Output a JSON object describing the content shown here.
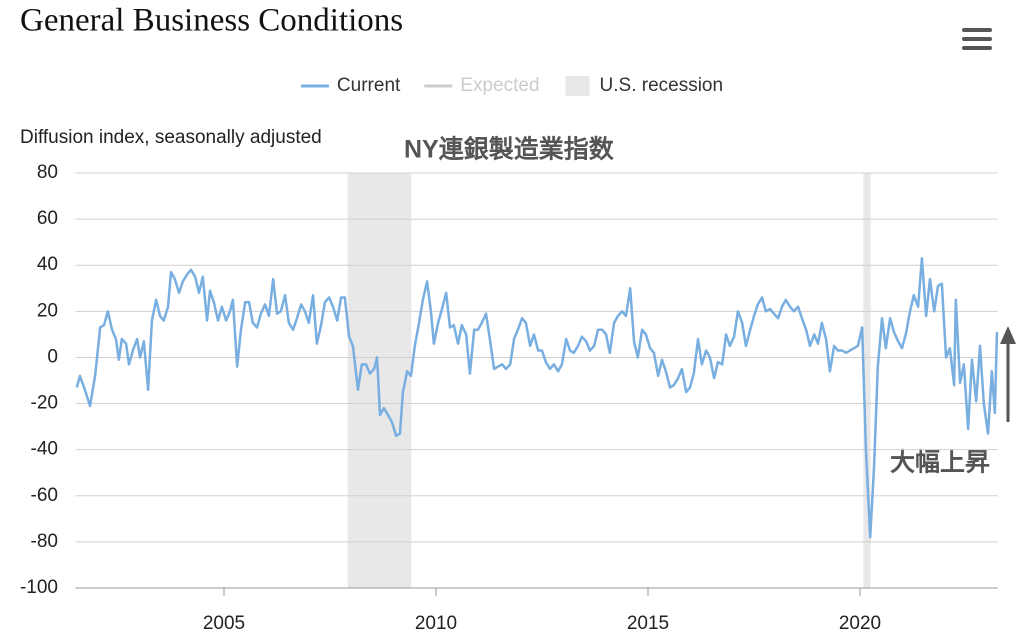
{
  "chart_data": {
    "type": "line",
    "title": "General Business Conditions",
    "y_axis_label": "Diffusion index, seasonally adjusted",
    "annotations": [
      "NY連銀製造業指数",
      "大幅上昇"
    ],
    "xlim": [
      2001.5,
      2023.25
    ],
    "xticks": [
      2005,
      2010,
      2015,
      2020
    ],
    "ylim": [
      -100,
      80
    ],
    "yticks": [
      -100,
      -80,
      -60,
      -40,
      -20,
      0,
      20,
      40,
      60,
      80
    ],
    "grid": true,
    "legend_position": "top",
    "recession": {
      "name": "U.S. recession",
      "color": "#e8e8e8",
      "periods": [
        [
          2007.92,
          2009.42
        ],
        [
          2020.08,
          2020.25
        ]
      ]
    },
    "hidden_legend": {
      "name": "Expected",
      "color": "#cccccc"
    },
    "x": [
      2001.53,
      2001.6,
      2001.72,
      2001.84,
      2001.96,
      2002.08,
      2002.17,
      2002.26,
      2002.36,
      2002.45,
      2002.52,
      2002.59,
      2002.69,
      2002.76,
      2002.85,
      2002.95,
      2003.02,
      2003.11,
      2003.21,
      2003.3,
      2003.4,
      2003.49,
      2003.58,
      2003.68,
      2003.75,
      2003.84,
      2003.94,
      2004.03,
      2004.13,
      2004.22,
      2004.32,
      2004.41,
      2004.5,
      2004.6,
      2004.67,
      2004.76,
      2004.86,
      2004.95,
      2005.05,
      2005.14,
      2005.21,
      2005.31,
      2005.4,
      2005.5,
      2005.59,
      2005.68,
      2005.78,
      2005.87,
      2005.97,
      2006.06,
      2006.16,
      2006.25,
      2006.34,
      2006.44,
      2006.53,
      2006.63,
      2006.72,
      2006.82,
      2006.91,
      2007.0,
      2007.1,
      2007.19,
      2007.29,
      2007.38,
      2007.48,
      2007.57,
      2007.67,
      2007.76,
      2007.85,
      2007.95,
      2008.04,
      2008.16,
      2008.25,
      2008.35,
      2008.44,
      2008.54,
      2008.61,
      2008.68,
      2008.77,
      2008.87,
      2008.96,
      2009.06,
      2009.15,
      2009.22,
      2009.32,
      2009.41,
      2009.5,
      2009.6,
      2009.69,
      2009.79,
      2009.88,
      2009.95,
      2010.05,
      2010.14,
      2010.24,
      2010.33,
      2010.42,
      2010.52,
      2010.61,
      2010.71,
      2010.8,
      2010.9,
      2010.99,
      2011.08,
      2011.18,
      2011.27,
      2011.37,
      2011.46,
      2011.56,
      2011.65,
      2011.75,
      2011.84,
      2011.93,
      2012.03,
      2012.12,
      2012.22,
      2012.31,
      2012.41,
      2012.5,
      2012.59,
      2012.69,
      2012.78,
      2012.88,
      2012.97,
      2013.07,
      2013.16,
      2013.25,
      2013.35,
      2013.44,
      2013.54,
      2013.63,
      2013.73,
      2013.82,
      2013.92,
      2014.01,
      2014.1,
      2014.2,
      2014.29,
      2014.39,
      2014.48,
      2014.58,
      2014.67,
      2014.76,
      2014.86,
      2014.95,
      2015.05,
      2015.14,
      2015.24,
      2015.33,
      2015.42,
      2015.52,
      2015.61,
      2015.71,
      2015.8,
      2015.9,
      2015.99,
      2016.08,
      2016.18,
      2016.27,
      2016.37,
      2016.46,
      2016.56,
      2016.65,
      2016.75,
      2016.84,
      2016.93,
      2017.03,
      2017.12,
      2017.22,
      2017.31,
      2017.41,
      2017.5,
      2017.59,
      2017.69,
      2017.78,
      2017.88,
      2017.97,
      2018.07,
      2018.16,
      2018.25,
      2018.35,
      2018.44,
      2018.54,
      2018.63,
      2018.73,
      2018.82,
      2018.92,
      2019.01,
      2019.1,
      2019.2,
      2019.29,
      2019.39,
      2019.48,
      2019.58,
      2019.67,
      2019.76,
      2019.86,
      2019.95,
      2020.05,
      2020.14,
      2020.24,
      2020.33,
      2020.42,
      2020.52,
      2020.61,
      2020.71,
      2020.8,
      2020.9,
      2020.99,
      2021.08,
      2021.18,
      2021.27,
      2021.37,
      2021.46,
      2021.56,
      2021.65,
      2021.75,
      2021.84,
      2021.93,
      2022.03,
      2022.12,
      2022.22,
      2022.26,
      2022.36,
      2022.45,
      2022.55,
      2022.64,
      2022.74,
      2022.83,
      2022.92,
      2023.02,
      2023.11,
      2023.18,
      2023.23
    ],
    "series": [
      {
        "name": "Current",
        "color": "#78aee0",
        "values": [
          -13,
          -8,
          -14,
          -21,
          -8,
          13,
          14,
          20,
          12,
          8,
          -1,
          8,
          6,
          -3,
          3,
          8,
          0,
          7,
          -14,
          16,
          25,
          18,
          16,
          22,
          37,
          34,
          28,
          33,
          36,
          38,
          35,
          28,
          35,
          16,
          29,
          24,
          16,
          22,
          16,
          20,
          25,
          -4,
          12,
          24,
          24,
          15,
          13,
          19,
          23,
          18,
          34,
          19,
          20,
          27,
          15,
          12,
          17,
          23,
          20,
          15,
          27,
          6,
          14,
          24,
          26,
          22,
          16,
          26,
          26,
          9,
          5,
          -14,
          -3,
          -3,
          -7,
          -5,
          0,
          -25,
          -22,
          -25,
          -28,
          -34,
          -33,
          -15,
          -6,
          -8,
          5,
          15,
          25,
          33,
          20,
          6,
          15,
          21,
          28,
          13,
          14,
          6,
          14,
          10,
          -7,
          12,
          12,
          15,
          19,
          8,
          -5,
          -4,
          -3,
          -5,
          -3,
          8,
          12,
          17,
          15,
          5,
          10,
          3,
          3,
          -2,
          -5,
          -3,
          -6,
          -3,
          8,
          3,
          2,
          5,
          9,
          7,
          3,
          5,
          12,
          12,
          10,
          2,
          15,
          18,
          20,
          18,
          30,
          7,
          0,
          12,
          10,
          4,
          2,
          -8,
          -1,
          -6,
          -13,
          -12,
          -9,
          -5,
          -15,
          -13,
          -7,
          8,
          -3,
          3,
          0,
          -9,
          -2,
          -3,
          10,
          5,
          9,
          20,
          15,
          5,
          12,
          18,
          23,
          26,
          20,
          21,
          19,
          17,
          22,
          25,
          22,
          20,
          22,
          17,
          12,
          5,
          10,
          6,
          15,
          8,
          -6,
          5,
          3,
          3,
          2,
          3,
          4,
          5,
          13,
          -40,
          -78,
          -48,
          -4,
          17,
          4,
          17,
          11,
          7,
          4,
          10,
          20,
          27,
          22,
          43,
          18,
          34,
          20,
          31,
          32,
          0,
          4,
          -12,
          25,
          -11,
          -3,
          -31,
          -1,
          -19,
          5,
          -20,
          -33,
          -6,
          -24,
          11
        ]
      }
    ]
  }
}
